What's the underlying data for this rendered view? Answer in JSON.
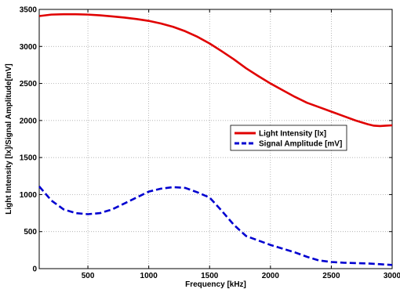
{
  "chart_data": {
    "type": "line",
    "title": "",
    "xlabel": "Frequency [kHz]",
    "ylabel": "Light Intensity [lx]/Signal Amplitude[mV]",
    "xlim": [
      100,
      3000
    ],
    "ylim": [
      0,
      3500
    ],
    "xticks": [
      500,
      1000,
      1500,
      2000,
      2500,
      3000
    ],
    "yticks": [
      0,
      500,
      1000,
      1500,
      2000,
      2500,
      3000,
      3500
    ],
    "grid": true,
    "legend_position": "right",
    "series": [
      {
        "name": "Light Intensity [lx]",
        "color": "#e00000",
        "dash": "solid",
        "x": [
          100,
          200,
          300,
          400,
          500,
          600,
          700,
          800,
          900,
          1000,
          1100,
          1200,
          1300,
          1400,
          1500,
          1600,
          1700,
          1800,
          1900,
          2000,
          2100,
          2200,
          2300,
          2400,
          2500,
          2600,
          2700,
          2800,
          2850,
          2900,
          2950,
          3000
        ],
        "y": [
          3410,
          3430,
          3435,
          3435,
          3430,
          3420,
          3405,
          3390,
          3370,
          3345,
          3310,
          3265,
          3205,
          3130,
          3040,
          2935,
          2825,
          2705,
          2600,
          2500,
          2410,
          2320,
          2240,
          2180,
          2120,
          2060,
          2000,
          1950,
          1930,
          1925,
          1930,
          1935
        ]
      },
      {
        "name": "Signal Amplitude [mV]",
        "color": "#0000d0",
        "dash": "dashed",
        "x": [
          100,
          200,
          300,
          400,
          500,
          600,
          700,
          800,
          900,
          1000,
          1100,
          1200,
          1300,
          1400,
          1500,
          1600,
          1700,
          1800,
          1900,
          2000,
          2100,
          2200,
          2300,
          2400,
          2500,
          2600,
          2700,
          2800,
          2900,
          3000
        ],
        "y": [
          1110,
          920,
          800,
          750,
          735,
          750,
          800,
          880,
          960,
          1040,
          1080,
          1100,
          1090,
          1030,
          960,
          780,
          590,
          440,
          380,
          320,
          270,
          220,
          160,
          110,
          90,
          80,
          75,
          70,
          60,
          50
        ]
      }
    ]
  }
}
